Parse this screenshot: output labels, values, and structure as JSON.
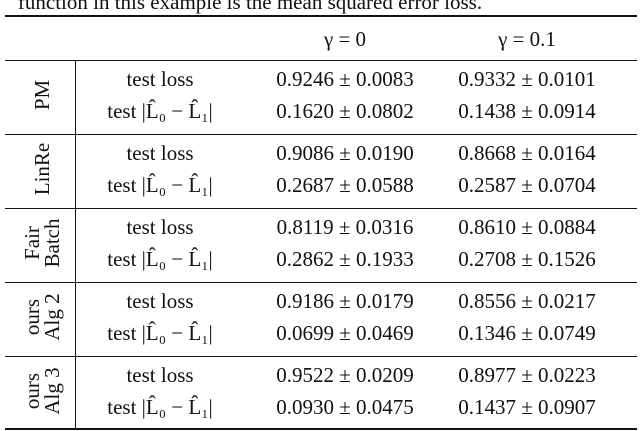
{
  "caption_fragment": "function in this example is the mean squared error loss.",
  "table": {
    "header": [
      "γ = 0",
      "γ = 0.1"
    ],
    "groups": [
      {
        "label_lines": [
          "PM"
        ],
        "rows": [
          {
            "metric": "test loss",
            "values": [
              "0.9246 ± 0.0083",
              "0.9332 ± 0.0101"
            ]
          },
          {
            "metric": "test |L̂₀ − L̂₁|",
            "values": [
              "0.1620 ± 0.0802",
              "0.1438 ± 0.0914"
            ]
          }
        ]
      },
      {
        "label_lines": [
          "LinRe"
        ],
        "rows": [
          {
            "metric": "test loss",
            "values": [
              "0.9086 ± 0.0190",
              "0.8668 ± 0.0164"
            ]
          },
          {
            "metric": "test |L̂₀ − L̂₁|",
            "values": [
              "0.2687 ± 0.0588",
              "0.2587 ± 0.0704"
            ]
          }
        ]
      },
      {
        "label_lines": [
          "Fair",
          "Batch"
        ],
        "rows": [
          {
            "metric": "test loss",
            "values": [
              "0.8119 ± 0.0316",
              "0.8610 ± 0.0884"
            ]
          },
          {
            "metric": "test |L̂₀ − L̂₁|",
            "values": [
              "0.2862 ± 0.1933",
              "0.2708 ± 0.1526"
            ]
          }
        ]
      },
      {
        "label_lines": [
          "ours",
          "Alg 2"
        ],
        "rows": [
          {
            "metric": "test loss",
            "values": [
              "0.9186 ± 0.0179",
              "0.8556 ± 0.0217"
            ]
          },
          {
            "metric": "test |L̂₀ − L̂₁|",
            "values": [
              "0.0699 ± 0.0469",
              "0.1346 ± 0.0749"
            ]
          }
        ]
      },
      {
        "label_lines": [
          "ours",
          "Alg 3"
        ],
        "rows": [
          {
            "metric": "test loss",
            "values": [
              "0.9522 ± 0.0209",
              "0.8977 ± 0.0223"
            ]
          },
          {
            "metric": "test |L̂₀ − L̂₁|",
            "values": [
              "0.0930 ± 0.0475",
              "0.1437 ± 0.0907"
            ]
          }
        ]
      }
    ]
  }
}
